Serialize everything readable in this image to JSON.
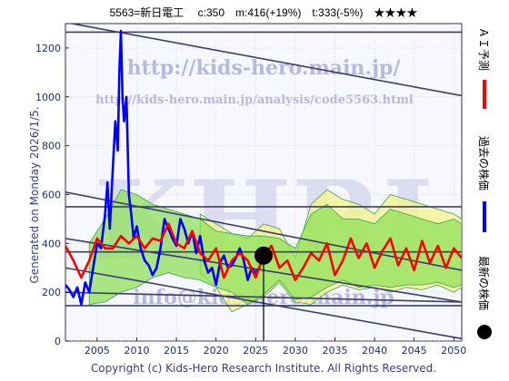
{
  "chart_data": {
    "type": "line",
    "title": "5563=新日電工　 c:350　m:416(+19%)　t:333(-5%)　★★★★",
    "xlabel": "",
    "ylabel": "",
    "xlim": [
      2001,
      2051
    ],
    "ylim": [
      0,
      1300
    ],
    "xticks": [
      2005,
      2010,
      2015,
      2020,
      2025,
      2030,
      2035,
      2040,
      2045,
      2050
    ],
    "yticks": [
      0,
      200,
      400,
      600,
      800,
      1000,
      1200
    ],
    "grid": true,
    "current_marker": {
      "year": 2026,
      "value": 350
    },
    "trend_lines": [
      {
        "x": [
          2001,
          2051
        ],
        "y": [
          1305,
          1005
        ]
      },
      {
        "x": [
          2001,
          2051
        ],
        "y": [
          1265,
          1265
        ]
      },
      {
        "x": [
          2001,
          2051
        ],
        "y": [
          610,
          290
        ]
      },
      {
        "x": [
          2001,
          2051
        ],
        "y": [
          550,
          550
        ]
      },
      {
        "x": [
          2001,
          2051
        ],
        "y": [
          420,
          160
        ]
      },
      {
        "x": [
          2001,
          2051
        ],
        "y": [
          365,
          365
        ]
      },
      {
        "x": [
          2001,
          2051
        ],
        "y": [
          300,
          10
        ]
      },
      {
        "x": [
          2001,
          2051
        ],
        "y": [
          200,
          160
        ]
      },
      {
        "x": [
          2001,
          2051
        ],
        "y": [
          145,
          145
        ]
      }
    ],
    "series": [
      {
        "name": "過去の株価",
        "color": "#0000ff",
        "x": [
          2001,
          2001.5,
          2002,
          2002.5,
          2003,
          2003.5,
          2004,
          2004.5,
          2005,
          2005.5,
          2006,
          2006.3,
          2006.6,
          2007,
          2007.3,
          2007.6,
          2007.8,
          2008,
          2008.2,
          2008.4,
          2008.7,
          2009,
          2009.3,
          2009.6,
          2010,
          2010.5,
          2011,
          2011.5,
          2012,
          2012.5,
          2013,
          2013.5,
          2014,
          2014.5,
          2015,
          2015.5,
          2016,
          2016.5,
          2017,
          2017.5,
          2018,
          2018.5,
          2019,
          2019.5,
          2020,
          2020.5,
          2021,
          2021.5,
          2022,
          2022.5,
          2023,
          2023.5,
          2024,
          2024.5,
          2025,
          2025.5
        ],
        "y": [
          230,
          210,
          180,
          220,
          150,
          240,
          200,
          300,
          400,
          380,
          520,
          650,
          460,
          720,
          900,
          780,
          1100,
          1270,
          1000,
          900,
          1000,
          600,
          520,
          420,
          470,
          380,
          330,
          310,
          270,
          300,
          380,
          500,
          460,
          420,
          390,
          500,
          460,
          400,
          450,
          360,
          430,
          330,
          280,
          300,
          230,
          320,
          350,
          300,
          310,
          340,
          380,
          330,
          250,
          300,
          280,
          300
        ]
      },
      {
        "name": "ＡＩ予測",
        "color": "#ff0000",
        "x": [
          2001,
          2002,
          2003,
          2004,
          2005,
          2006,
          2007,
          2008,
          2009,
          2010,
          2011,
          2012,
          2013,
          2014,
          2015,
          2016,
          2017,
          2018,
          2019,
          2020,
          2021,
          2022,
          2023,
          2024,
          2025,
          2026,
          2027,
          2028,
          2029,
          2030,
          2031,
          2032,
          2033,
          2034,
          2035,
          2036,
          2037,
          2038,
          2039,
          2040,
          2041,
          2042,
          2043,
          2044,
          2045,
          2046,
          2047,
          2048,
          2049,
          2050,
          2051
        ],
        "y": [
          390,
          330,
          260,
          330,
          420,
          380,
          380,
          430,
          400,
          430,
          380,
          420,
          410,
          480,
          400,
          380,
          450,
          360,
          330,
          380,
          260,
          330,
          360,
          330,
          260,
          350,
          390,
          300,
          330,
          250,
          300,
          360,
          330,
          400,
          270,
          330,
          420,
          340,
          400,
          300,
          370,
          420,
          310,
          380,
          290,
          410,
          320,
          390,
          300,
          380,
          340
        ]
      }
    ],
    "bands": [
      {
        "name": "light-band",
        "color": "#f4f48a",
        "x": [
          2018,
          2020,
          2022,
          2024,
          2026,
          2028,
          2030,
          2032,
          2034,
          2036,
          2038,
          2040,
          2042,
          2044,
          2046,
          2048,
          2050,
          2051
        ],
        "upper": [
          520,
          480,
          440,
          420,
          480,
          460,
          340,
          560,
          620,
          580,
          560,
          520,
          600,
          580,
          560,
          540,
          520,
          500
        ],
        "lower": [
          280,
          220,
          120,
          150,
          180,
          240,
          160,
          150,
          200,
          230,
          210,
          220,
          200,
          220,
          210,
          230,
          200,
          220
        ]
      },
      {
        "name": "green-band",
        "color": "#8fe05a",
        "x": [
          2004,
          2006,
          2008,
          2010,
          2012,
          2014,
          2016,
          2018,
          2020,
          2022,
          2024,
          2026,
          2028,
          2030,
          2032,
          2034,
          2036,
          2038,
          2040,
          2042,
          2044,
          2046,
          2048,
          2050,
          2051
        ],
        "upper": [
          400,
          500,
          620,
          600,
          560,
          540,
          520,
          500,
          450,
          440,
          430,
          430,
          420,
          380,
          520,
          560,
          500,
          500,
          480,
          540,
          520,
          500,
          480,
          500,
          480
        ],
        "lower": [
          150,
          160,
          200,
          220,
          260,
          280,
          260,
          250,
          220,
          200,
          150,
          190,
          250,
          170,
          180,
          220,
          250,
          220,
          230,
          220,
          230,
          230,
          240,
          220,
          230
        ]
      }
    ]
  },
  "watermark": {
    "url_big": "http://kids-hero.main.jp/",
    "url_small": "http://kids-hero.main.jp/analysis/code5563.html",
    "logo": "KHRI",
    "mail": "info@kids-hero.main.jp"
  },
  "left_label": "Generated on Monday 2026/1/5.",
  "footer": "Copyright (c) Kids-Hero Research Institute. All Rights Reserved.",
  "legend": [
    {
      "label": "ＡＩ予測",
      "color": "#ff0000",
      "marker": "line"
    },
    {
      "label": "過去の株価",
      "color": "#0000ff",
      "marker": "line"
    },
    {
      "label": "最新の株価",
      "color": "#000000",
      "marker": "dot"
    }
  ]
}
